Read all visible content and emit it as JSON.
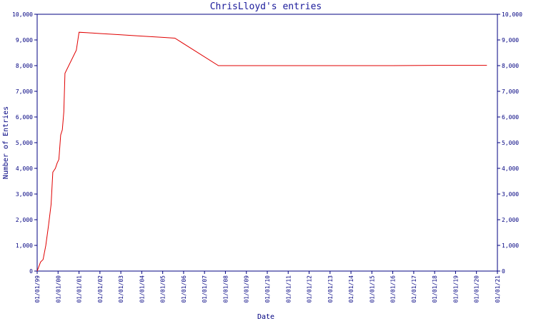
{
  "chart_data": {
    "type": "line",
    "title": "ChrisLloyd's entries",
    "xlabel": "Date",
    "ylabel": "Number of Entries",
    "ylim": [
      0,
      10000
    ],
    "xlim": [
      "1999-01-01",
      "2021-01-01"
    ],
    "y_ticks": [
      "0",
      "1,000",
      "2,000",
      "3,000",
      "4,000",
      "5,000",
      "6,000",
      "7,000",
      "8,000",
      "9,000",
      "10,000"
    ],
    "x_ticks": [
      "01/01/99",
      "01/01/00",
      "01/01/01",
      "01/01/02",
      "01/01/03",
      "01/01/04",
      "01/01/05",
      "01/01/06",
      "01/01/07",
      "01/01/08",
      "01/01/09",
      "01/01/10",
      "01/01/11",
      "01/01/12",
      "01/01/13",
      "01/01/14",
      "01/01/15",
      "01/01/16",
      "01/01/17",
      "01/01/18",
      "01/01/19",
      "01/01/20",
      "01/01/21"
    ],
    "series": [
      {
        "color": "#e00000",
        "points": [
          [
            "1999-01-01",
            0
          ],
          [
            "1999-03-01",
            350
          ],
          [
            "1999-04-15",
            450
          ],
          [
            "1999-06-01",
            1000
          ],
          [
            "1999-07-20",
            1800
          ],
          [
            "1999-09-01",
            2600
          ],
          [
            "1999-10-01",
            3850
          ],
          [
            "1999-11-15",
            4000
          ],
          [
            "1999-12-15",
            4200
          ],
          [
            "2000-01-15",
            4350
          ],
          [
            "2000-02-15",
            5300
          ],
          [
            "2000-03-15",
            5500
          ],
          [
            "2000-04-10",
            6200
          ],
          [
            "2000-05-01",
            7700
          ],
          [
            "2000-11-15",
            8600
          ],
          [
            "2001-01-01",
            9300
          ],
          [
            "2001-06-01",
            9280
          ],
          [
            "2002-01-01",
            9250
          ],
          [
            "2003-01-01",
            9200
          ],
          [
            "2004-01-01",
            9150
          ],
          [
            "2005-01-01",
            9100
          ],
          [
            "2005-08-01",
            9070
          ],
          [
            "2007-09-01",
            8000
          ],
          [
            "2008-01-01",
            8000
          ],
          [
            "2012-01-01",
            8000
          ],
          [
            "2016-01-01",
            8000
          ],
          [
            "2018-01-01",
            8010
          ],
          [
            "2020-07-01",
            8010
          ]
        ]
      }
    ]
  }
}
